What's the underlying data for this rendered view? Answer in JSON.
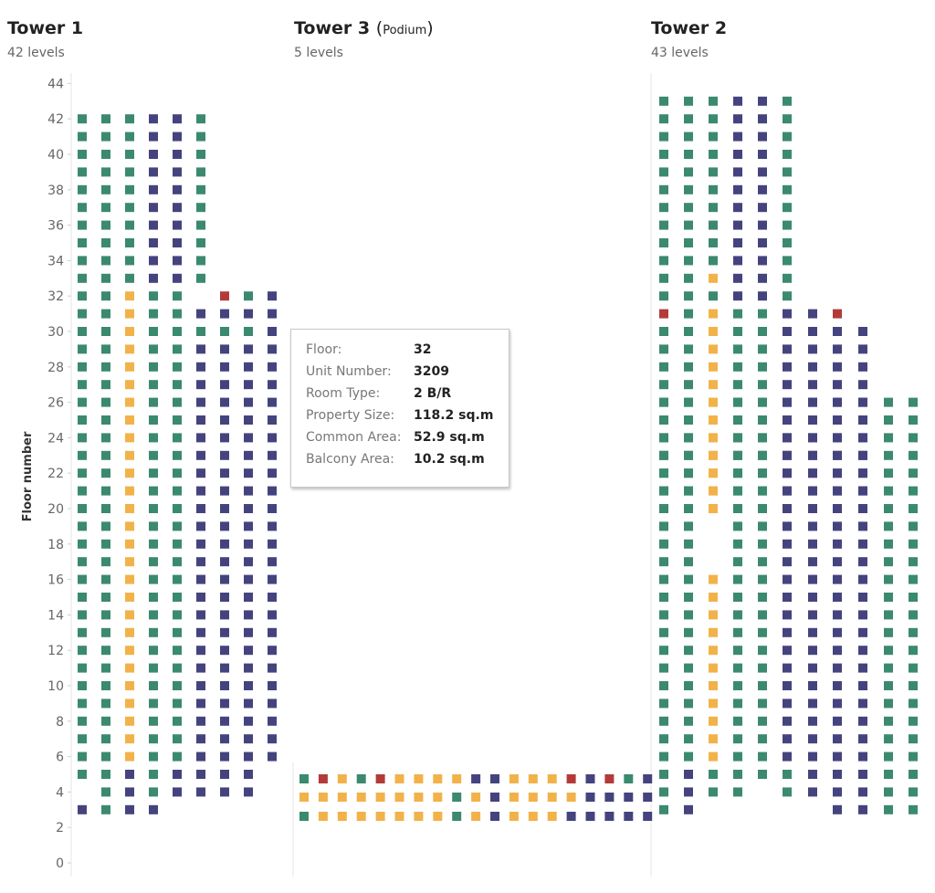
{
  "towers": [
    {
      "name": "Tower 1",
      "levels_label": "42 levels"
    },
    {
      "name": "Tower 3",
      "name_paren_open": "(",
      "name_sub": "Podium",
      "name_paren_close": ")",
      "levels_label": "5 levels"
    },
    {
      "name": "Tower 2",
      "levels_label": "43 levels"
    }
  ],
  "tooltip": {
    "rows": [
      {
        "key": "Floor:",
        "value": "32"
      },
      {
        "key": "Unit Number:",
        "value": "3209"
      },
      {
        "key": "Room Type:",
        "value": "2 B/R"
      },
      {
        "key": "Property Size:",
        "value": "118.2 sq.m"
      },
      {
        "key": "Common Area:",
        "value": "52.9 sq.m"
      },
      {
        "key": "Balcony Area:",
        "value": "10.2 sq.m"
      }
    ]
  },
  "chart_data": {
    "type": "scatter",
    "ylabel": "Floor number",
    "yticks": [
      0,
      2,
      4,
      6,
      8,
      10,
      12,
      14,
      16,
      18,
      20,
      22,
      24,
      26,
      28,
      30,
      32,
      34,
      36,
      38,
      40,
      42,
      44
    ],
    "grid": false,
    "colors": {
      "G": "#3b8a6e",
      "N": "#45437e",
      "Y": "#f2b24a",
      "R": "#b23b39"
    },
    "tower1": {
      "top_rows": [
        "GGGNNG",
        "GGGNNG",
        "GGGNNG",
        "GGGNNG",
        "GGGNNG",
        "GGGNNG",
        "GGGNNG",
        "GGGNNG",
        "GGGNNG",
        "GGGNNG"
      ],
      "mid_rows": {
        "32": "GGYGG.RGN",
        "31": "GGYGGNNNN",
        "30": "GGYGGGGGN"
      },
      "low_pattern": "GGYGGNNNN",
      "low_floors": [
        6,
        29
      ],
      "bottom_rows": {
        "5": "GGNGNNNN.",
        "4": ".GNGNNNN.",
        "3": "NGNN....."
      }
    },
    "tower3": {
      "rows": {
        "5": "GRYGRYYYYNNYYYRNRGN",
        "4": "YYYYYYYYGYNYYYYNNNN",
        "3": "GYYYYYYYGYNYYYNNNNN"
      }
    },
    "tower2": {
      "top_rows": [
        "GGGNNG",
        "GGGNNG",
        "GGGNNG",
        "GGGNNG",
        "GGGNNG",
        "GGGNNG",
        "GGGNNG",
        "GGGNNG",
        "GGGNNG",
        "GGGNNG",
        "GGYNNG",
        "GGGNNG"
      ],
      "row31": "RGYGGNNR",
      "mid_pattern": "GGYGGNNNN",
      "mid_floors": [
        20,
        30
      ],
      "low_pattern": "GGYGGNNNNGG",
      "low_floors": [
        6,
        26
      ],
      "blank_yellow_floors": [
        19,
        18,
        17
      ],
      "bottom_rows": {
        "5": "GNGGGGNNNGG",
        "4": "GNGG.GNNNGG",
        "3": "GN.....NNGG"
      }
    }
  }
}
